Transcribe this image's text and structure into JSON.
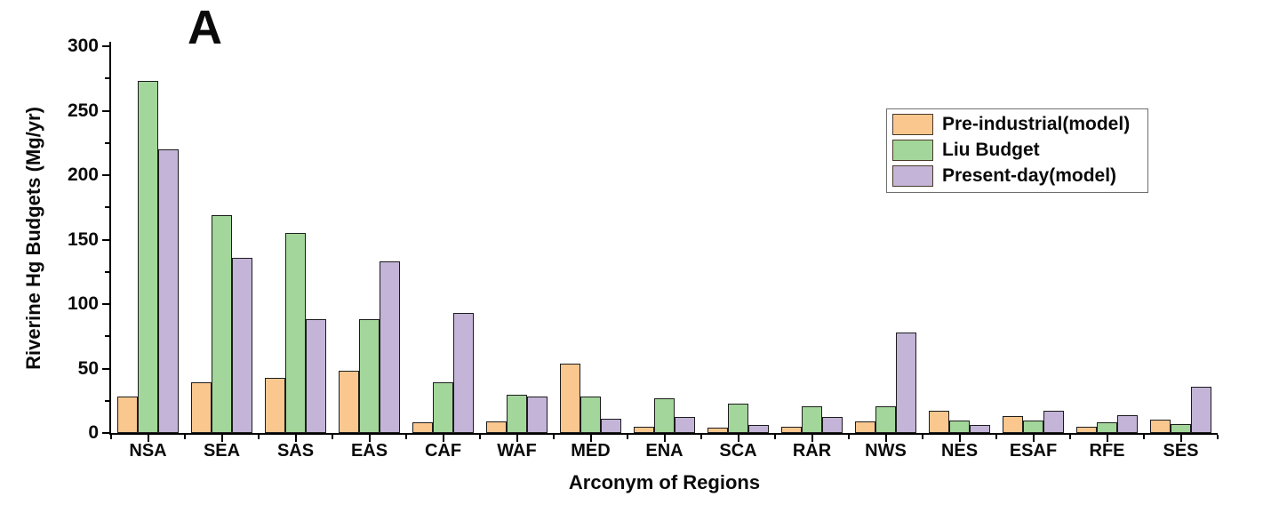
{
  "figure_label": "A",
  "chart_data": {
    "type": "bar",
    "title": "A",
    "xlabel": "Arconym of Regions",
    "ylabel": "Riverine Hg Budgets (Mg/yr)",
    "ylim": [
      0,
      300
    ],
    "yticks": [
      0,
      50,
      100,
      150,
      200,
      250,
      300
    ],
    "y_minor_tick_step": 25,
    "grid": false,
    "legend_position": "top-right",
    "categories": [
      "NSA",
      "SEA",
      "SAS",
      "EAS",
      "CAF",
      "WAF",
      "MED",
      "ENA",
      "SCA",
      "RAR",
      "NWS",
      "NES",
      "ESAF",
      "RFE",
      "SES"
    ],
    "series": [
      {
        "name": "Pre-industrial(model)",
        "color": "#FAC78F",
        "values": [
          28,
          39,
          43,
          48,
          8.5,
          9,
          54,
          5,
          4,
          5,
          9,
          17,
          13,
          4.5,
          10.5
        ]
      },
      {
        "name": "Liu Budget",
        "color": "#A3D69A",
        "values": [
          273,
          169,
          155,
          88,
          39,
          30,
          28.5,
          27,
          22.5,
          21,
          21,
          10,
          9.5,
          8.5,
          7
        ]
      },
      {
        "name": "Present-day(model)",
        "color": "#C3B4D8",
        "values": [
          220,
          136,
          88,
          133,
          93,
          28,
          11,
          12.5,
          6.5,
          12.5,
          78,
          6.5,
          17,
          13.5,
          36
        ]
      }
    ]
  }
}
